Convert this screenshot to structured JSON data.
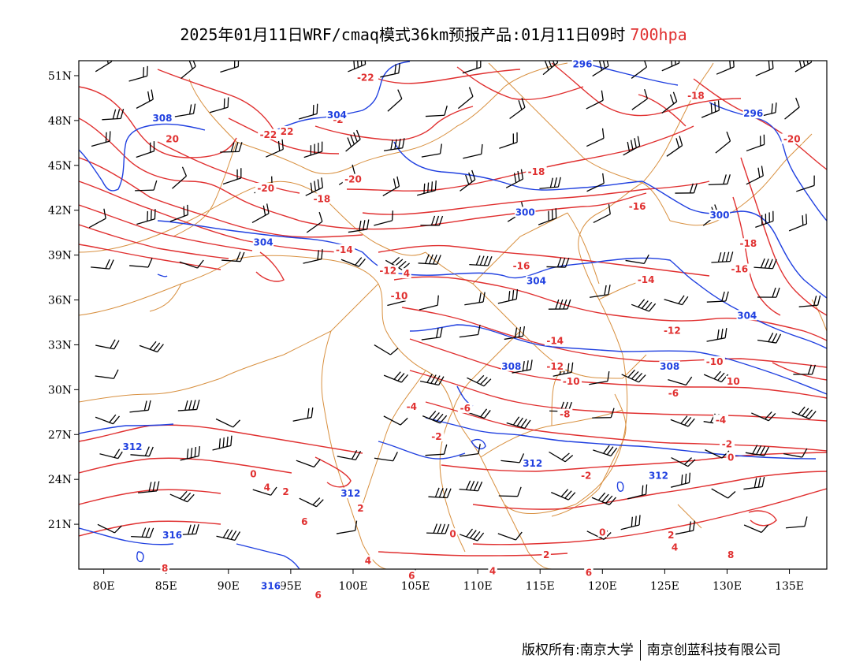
{
  "title": {
    "text": "2025年01月11日WRF/cmaq模式36km预报产品:01月11日09时",
    "level": "700hpa"
  },
  "footer": {
    "left": "版权所有:南京大学",
    "right": "南京创蓝科技有限公司"
  },
  "colors": {
    "temperature": "#e03030",
    "height": "#2040e0",
    "border": "#d89040",
    "wind": "#000000"
  },
  "map_data": {
    "lon_range": [
      78,
      138
    ],
    "lat_range": [
      18,
      52
    ],
    "x_ticks": [
      "80E",
      "85E",
      "90E",
      "95E",
      "100E",
      "105E",
      "110E",
      "115E",
      "120E",
      "125E",
      "130E",
      "135E"
    ],
    "y_ticks": [
      "51N",
      "48N",
      "45N",
      "42N",
      "39N",
      "36N",
      "33N",
      "30N",
      "27N",
      "24N",
      "21N"
    ],
    "temp_labels": [
      {
        "text": "-22",
        "lon": 101.0,
        "lat": 50.7
      },
      {
        "text": "-18",
        "lon": 127.5,
        "lat": 49.5
      },
      {
        "text": "-2",
        "lon": 98.8,
        "lat": 47.9
      },
      {
        "text": "22",
        "lon": 94.7,
        "lat": 47.1
      },
      {
        "text": "-22",
        "lon": 93.2,
        "lat": 46.9
      },
      {
        "text": "20",
        "lon": 85.5,
        "lat": 46.6
      },
      {
        "text": "-20",
        "lon": 135.2,
        "lat": 46.6
      },
      {
        "text": "-20",
        "lon": 100.0,
        "lat": 43.9
      },
      {
        "text": "-18",
        "lon": 114.7,
        "lat": 44.4
      },
      {
        "text": "-20",
        "lon": 93.0,
        "lat": 43.3
      },
      {
        "text": "-18",
        "lon": 97.5,
        "lat": 42.6
      },
      {
        "text": "-16",
        "lon": 122.8,
        "lat": 42.1
      },
      {
        "text": "-18",
        "lon": 131.7,
        "lat": 39.6
      },
      {
        "text": "-14",
        "lon": 99.3,
        "lat": 39.2
      },
      {
        "text": "-16",
        "lon": 113.5,
        "lat": 38.1
      },
      {
        "text": "-16",
        "lon": 131.0,
        "lat": 37.9
      },
      {
        "text": "-12",
        "lon": 102.8,
        "lat": 37.8
      },
      {
        "text": "4",
        "lon": 104.3,
        "lat": 37.6
      },
      {
        "text": "-14",
        "lon": 123.5,
        "lat": 37.2
      },
      {
        "text": "-10",
        "lon": 103.7,
        "lat": 36.1
      },
      {
        "text": "-12",
        "lon": 125.6,
        "lat": 33.8
      },
      {
        "text": "-14",
        "lon": 116.2,
        "lat": 33.1
      },
      {
        "text": "-10",
        "lon": 129.0,
        "lat": 31.7
      },
      {
        "text": "-12",
        "lon": 116.2,
        "lat": 31.4
      },
      {
        "text": "10",
        "lon": 130.5,
        "lat": 30.4
      },
      {
        "text": "-10",
        "lon": 117.5,
        "lat": 30.4
      },
      {
        "text": "-6",
        "lon": 125.7,
        "lat": 29.6
      },
      {
        "text": "-4",
        "lon": 104.7,
        "lat": 28.7
      },
      {
        "text": "-6",
        "lon": 109.0,
        "lat": 28.6
      },
      {
        "text": "-8",
        "lon": 117.0,
        "lat": 28.2
      },
      {
        "text": "-4",
        "lon": 129.5,
        "lat": 27.8
      },
      {
        "text": "-2",
        "lon": 106.7,
        "lat": 26.7
      },
      {
        "text": "-2",
        "lon": 130.0,
        "lat": 26.2
      },
      {
        "text": "0",
        "lon": 130.3,
        "lat": 25.3
      },
      {
        "text": "0",
        "lon": 92.0,
        "lat": 24.2
      },
      {
        "text": "-2",
        "lon": 118.7,
        "lat": 24.1
      },
      {
        "text": "4",
        "lon": 93.1,
        "lat": 23.3
      },
      {
        "text": "2",
        "lon": 94.6,
        "lat": 23.0
      },
      {
        "text": "2",
        "lon": 100.6,
        "lat": 21.9
      },
      {
        "text": "6",
        "lon": 96.1,
        "lat": 21.0
      },
      {
        "text": "0",
        "lon": 108.0,
        "lat": 20.2
      },
      {
        "text": "0",
        "lon": 120.0,
        "lat": 20.3
      },
      {
        "text": "2",
        "lon": 125.5,
        "lat": 20.1
      },
      {
        "text": "4",
        "lon": 125.8,
        "lat": 19.3
      },
      {
        "text": "2",
        "lon": 115.5,
        "lat": 18.8
      },
      {
        "text": "8",
        "lon": 130.3,
        "lat": 18.8
      },
      {
        "text": "4",
        "lon": 101.2,
        "lat": 18.4
      },
      {
        "text": "4",
        "lon": 111.2,
        "lat": 17.7
      },
      {
        "text": "8",
        "lon": 84.9,
        "lat": 17.9
      },
      {
        "text": "6",
        "lon": 104.7,
        "lat": 17.4
      },
      {
        "text": "6",
        "lon": 118.9,
        "lat": 17.6
      },
      {
        "text": "6",
        "lon": 97.2,
        "lat": 16.1
      }
    ],
    "height_labels": [
      {
        "text": "296",
        "lon": 118.4,
        "lat": 51.6
      },
      {
        "text": "296",
        "lon": 132.1,
        "lat": 48.3
      },
      {
        "text": "308",
        "lon": 84.7,
        "lat": 48.0
      },
      {
        "text": "304",
        "lon": 98.7,
        "lat": 48.2
      },
      {
        "text": "300",
        "lon": 113.8,
        "lat": 41.7
      },
      {
        "text": "300",
        "lon": 129.4,
        "lat": 41.5
      },
      {
        "text": "304",
        "lon": 92.8,
        "lat": 39.7
      },
      {
        "text": "304",
        "lon": 114.7,
        "lat": 37.1
      },
      {
        "text": "304",
        "lon": 131.6,
        "lat": 34.8
      },
      {
        "text": "308",
        "lon": 112.7,
        "lat": 31.4
      },
      {
        "text": "308",
        "lon": 125.4,
        "lat": 31.4
      },
      {
        "text": "312",
        "lon": 82.3,
        "lat": 26.0
      },
      {
        "text": "312",
        "lon": 114.4,
        "lat": 24.9
      },
      {
        "text": "312",
        "lon": 124.5,
        "lat": 24.1
      },
      {
        "text": "312",
        "lon": 99.8,
        "lat": 22.9
      },
      {
        "text": "316",
        "lon": 85.5,
        "lat": 20.1
      },
      {
        "text": "316",
        "lon": 93.4,
        "lat": 16.7
      }
    ]
  }
}
